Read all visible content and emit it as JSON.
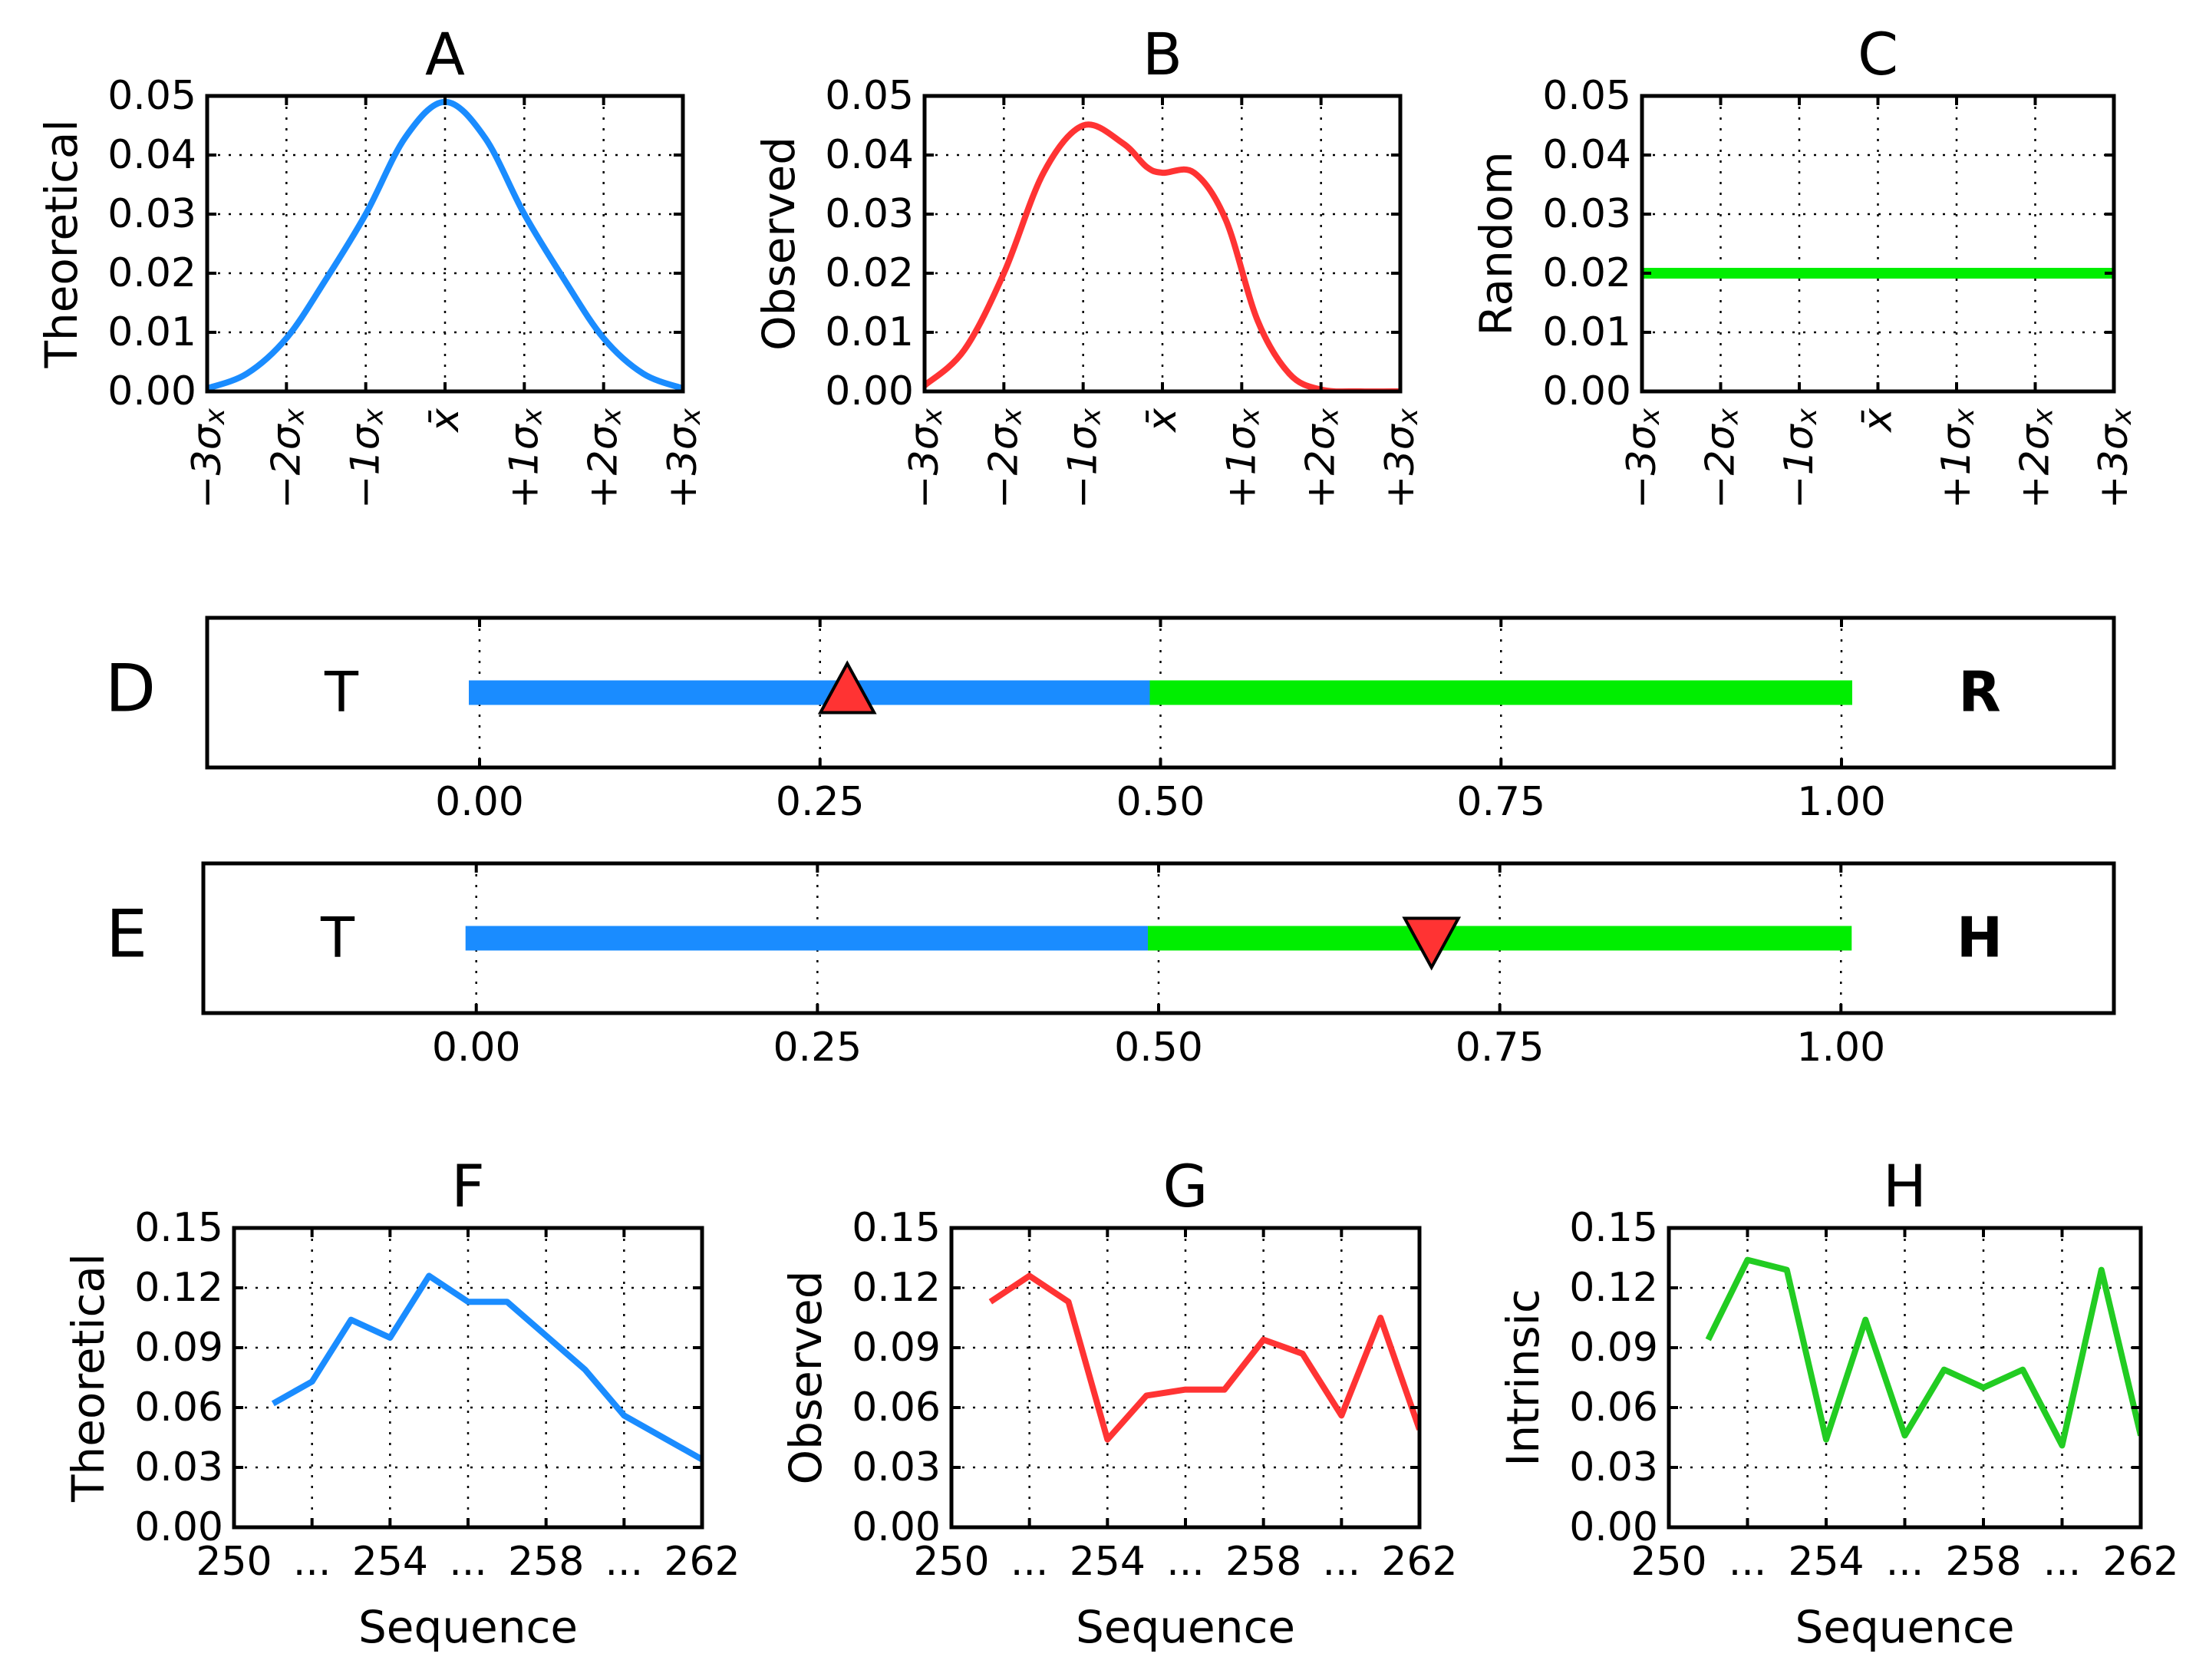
{
  "colors": {
    "blue": "#1a8cff",
    "red": "#ff3333",
    "green": "#00ee00",
    "green_dark": "#22cc22"
  },
  "chart_data": [
    {
      "id": "A",
      "type": "line",
      "title": "A",
      "ylabel": "Theoretical",
      "ylim": [
        0,
        0.05
      ],
      "yticks": [
        "0.00",
        "0.01",
        "0.02",
        "0.03",
        "0.04",
        "0.05"
      ],
      "xlim": [
        -3,
        3
      ],
      "xticks": [
        "−3σ_x",
        "−2σ_x",
        "−1σ_x",
        "x̄",
        "+1σ_x",
        "+2σ_x",
        "+3σ_x"
      ],
      "x": [
        -3,
        -2.5,
        -2,
        -1.5,
        -1,
        -0.5,
        0,
        0.5,
        1,
        1.5,
        2,
        2.5,
        3
      ],
      "y": [
        0.0005,
        0.003,
        0.009,
        0.019,
        0.03,
        0.043,
        0.049,
        0.043,
        0.03,
        0.019,
        0.009,
        0.003,
        0.0005
      ],
      "color": "#1a8cff"
    },
    {
      "id": "B",
      "type": "line",
      "title": "B",
      "ylabel": "Observed",
      "ylim": [
        0,
        0.05
      ],
      "yticks": [
        "0.00",
        "0.01",
        "0.02",
        "0.03",
        "0.04",
        "0.05"
      ],
      "xlim": [
        -3,
        3
      ],
      "xticks": [
        "−3σ_x",
        "−2σ_x",
        "−1σ_x",
        "x̄",
        "+1σ_x",
        "+2σ_x",
        "+3σ_x"
      ],
      "x": [
        -3,
        -2.5,
        -2,
        -1.5,
        -1,
        -0.5,
        -0.2,
        0,
        0.4,
        0.8,
        1.2,
        1.6,
        2,
        2.5,
        3
      ],
      "y": [
        0.001,
        0.007,
        0.02,
        0.037,
        0.045,
        0.042,
        0.038,
        0.037,
        0.037,
        0.029,
        0.012,
        0.003,
        0.0003,
        0,
        0
      ],
      "color": "#ff3333"
    },
    {
      "id": "C",
      "type": "line",
      "title": "C",
      "ylabel": "Random",
      "ylim": [
        0,
        0.05
      ],
      "yticks": [
        "0.00",
        "0.01",
        "0.02",
        "0.03",
        "0.04",
        "0.05"
      ],
      "xlim": [
        -3,
        3
      ],
      "xticks": [
        "−3σ_x",
        "−2σ_x",
        "−1σ_x",
        "x̄",
        "+1σ_x",
        "+2σ_x",
        "+3σ_x"
      ],
      "x": [
        -3,
        3
      ],
      "y": [
        0.02,
        0.02
      ],
      "color": "#00ee00"
    },
    {
      "id": "D",
      "type": "bar-scale",
      "label": "D",
      "xlim": [
        -0.2,
        1.2
      ],
      "xticks": [
        "0.00",
        "0.25",
        "0.50",
        "0.75",
        "1.00"
      ],
      "xtick_values": [
        0,
        0.25,
        0.5,
        0.75,
        1.0
      ],
      "left_label": "T",
      "right_label": "R",
      "segments": [
        {
          "from": 0,
          "to": 0.5,
          "color": "#1a8cff"
        },
        {
          "from": 0.5,
          "to": 1.0,
          "color": "#00ee00"
        }
      ],
      "marker": {
        "value": 0.27,
        "shape": "triangle-up",
        "color": "#ff3333"
      }
    },
    {
      "id": "E",
      "type": "bar-scale",
      "label": "E",
      "xlim": [
        -0.2,
        1.2
      ],
      "xticks": [
        "0.00",
        "0.25",
        "0.50",
        "0.75",
        "1.00"
      ],
      "xtick_values": [
        0,
        0.25,
        0.5,
        0.75,
        1.0
      ],
      "left_label": "T",
      "right_label": "H",
      "segments": [
        {
          "from": 0,
          "to": 0.5,
          "color": "#1a8cff"
        },
        {
          "from": 0.5,
          "to": 1.0,
          "color": "#00ee00"
        }
      ],
      "marker": {
        "value": 0.7,
        "shape": "triangle-down",
        "color": "#ff3333"
      }
    },
    {
      "id": "F",
      "type": "line",
      "title": "F",
      "ylabel": "Theoretical",
      "xlabel": "Sequence",
      "ylim": [
        0,
        0.15
      ],
      "yticks": [
        "0.00",
        "0.03",
        "0.06",
        "0.09",
        "0.12",
        "0.15"
      ],
      "xlim": [
        250,
        262
      ],
      "xticks": [
        "250",
        "...",
        "254",
        "...",
        "258",
        "...",
        "262"
      ],
      "x": [
        251,
        252,
        253,
        254,
        255,
        256,
        257,
        258,
        259,
        260,
        261,
        262
      ],
      "y": [
        0.062,
        0.073,
        0.104,
        0.095,
        0.126,
        0.113,
        0.113,
        0.096,
        0.079,
        0.056,
        0.045,
        0.034
      ],
      "color": "#1a8cff"
    },
    {
      "id": "G",
      "type": "line",
      "title": "G",
      "ylabel": "Observed",
      "xlabel": "Sequence",
      "ylim": [
        0,
        0.15
      ],
      "yticks": [
        "0.00",
        "0.03",
        "0.06",
        "0.09",
        "0.12",
        "0.15"
      ],
      "xlim": [
        250,
        262
      ],
      "xticks": [
        "250",
        "...",
        "254",
        "...",
        "258",
        "...",
        "262"
      ],
      "x": [
        251,
        252,
        253,
        254,
        255,
        256,
        257,
        258,
        259,
        260,
        261,
        262
      ],
      "y": [
        0.113,
        0.126,
        0.113,
        0.044,
        0.066,
        0.069,
        0.069,
        0.094,
        0.087,
        0.056,
        0.105,
        0.049
      ],
      "color": "#ff3333"
    },
    {
      "id": "H",
      "type": "line",
      "title": "H",
      "ylabel": "Intrinsic",
      "xlabel": "Sequence",
      "ylim": [
        0,
        0.15
      ],
      "yticks": [
        "0.00",
        "0.03",
        "0.06",
        "0.09",
        "0.12",
        "0.15"
      ],
      "xlim": [
        250,
        262
      ],
      "xticks": [
        "250",
        "...",
        "254",
        "...",
        "258",
        "...",
        "262"
      ],
      "x": [
        251,
        252,
        253,
        254,
        255,
        256,
        257,
        258,
        259,
        260,
        261,
        262
      ],
      "y": [
        0.094,
        0.134,
        0.129,
        0.044,
        0.104,
        0.046,
        0.079,
        0.07,
        0.079,
        0.041,
        0.129,
        0.046
      ],
      "color": "#22cc22"
    }
  ]
}
